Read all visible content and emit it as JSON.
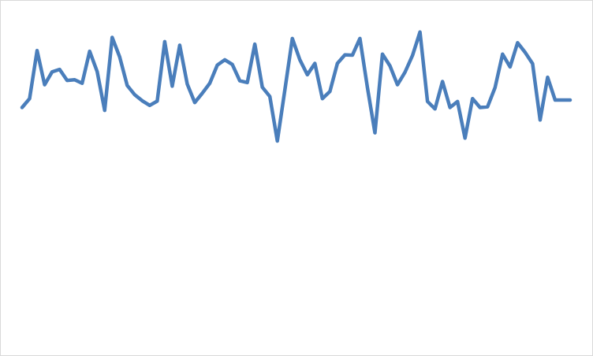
{
  "colors": {
    "series": "#4a7ebb",
    "frame_border": "#d9d9d9",
    "background": "#ffffff"
  },
  "chart_data": {
    "type": "line",
    "title": "",
    "xlabel": "",
    "ylabel": "",
    "axes_visible": false,
    "grid": false,
    "legend": "none",
    "x": [
      1,
      2,
      3,
      4,
      5,
      6,
      7,
      8,
      9,
      10,
      11,
      12,
      13,
      14,
      15,
      16,
      17,
      18,
      19,
      20,
      21,
      22,
      23,
      24,
      25,
      26,
      27,
      28,
      29,
      30,
      31,
      32,
      33,
      34,
      35,
      36,
      37,
      38,
      39,
      40,
      41,
      42,
      43,
      44,
      45,
      46,
      47,
      48,
      49,
      50,
      51,
      52,
      53,
      54,
      55,
      56,
      57,
      58,
      59,
      60,
      61,
      62,
      63,
      64,
      65,
      66,
      67,
      68,
      69,
      70,
      71,
      72,
      73,
      74
    ],
    "ylim": [
      0,
      100
    ],
    "series": [
      {
        "values": [
          69.8,
          72.3,
          85.8,
          76.2,
          79.8,
          80.5,
          77.4,
          77.6,
          76.6,
          85.6,
          79.9,
          69.0,
          89.5,
          84.0,
          76.0,
          73.4,
          71.7,
          70.4,
          71.6,
          88.3,
          75.8,
          87.3,
          76.4,
          71.2,
          73.8,
          76.6,
          81.7,
          83.2,
          81.9,
          77.3,
          76.8,
          87.6,
          75.5,
          72.9,
          60.4,
          74.7,
          89.2,
          83.2,
          79.0,
          82.2,
          72.3,
          74.3,
          82.2,
          84.6,
          84.5,
          89.2,
          75.4,
          62.7,
          84.8,
          81.5,
          76.2,
          79.7,
          84.4,
          91.0,
          71.5,
          69.4,
          77.1,
          69.8,
          71.5,
          61.2,
          72.3,
          69.8,
          70.0,
          75.4,
          84.8,
          81.2,
          88.0,
          85.3,
          82.1,
          66.3,
          78.3,
          71.9,
          71.9,
          71.9
        ]
      }
    ]
  }
}
